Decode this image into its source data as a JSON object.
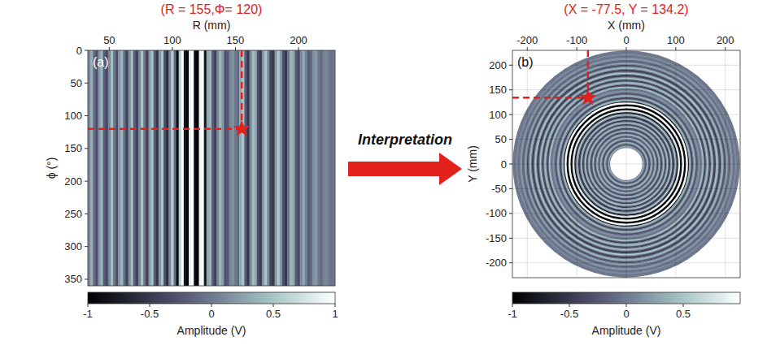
{
  "chart_data": [
    {
      "type": "heatmap",
      "title": "(R = 155,Φ= 120)",
      "panel": "(a)",
      "x_label": "R (mm)",
      "y_label": "ϕ (°)",
      "xlim": [
        33,
        229
      ],
      "xticks": [
        50,
        100,
        150,
        200
      ],
      "ylim": [
        0,
        360
      ],
      "yticks": [
        0,
        50,
        100,
        150,
        200,
        250,
        300,
        350
      ],
      "point": {
        "r": 155,
        "phi": 120
      },
      "profile": {
        "r": [
          34,
          36,
          38,
          40,
          42,
          44,
          46,
          48,
          50,
          52,
          54,
          56,
          58,
          60,
          62,
          64,
          66,
          68,
          70,
          72,
          74,
          76,
          78,
          80,
          82,
          84,
          86,
          88,
          90,
          92,
          94,
          96,
          98,
          100,
          102,
          104,
          106,
          108,
          110,
          112,
          114,
          116,
          118,
          120,
          122,
          124,
          126,
          128,
          130,
          132,
          134,
          136,
          138,
          140,
          142,
          144,
          146,
          148,
          150,
          152,
          154,
          156,
          158,
          160,
          162,
          164,
          166,
          168,
          170,
          172,
          174,
          176,
          178,
          180,
          182,
          184,
          186,
          188,
          190,
          192,
          194,
          196,
          198,
          200,
          202,
          204,
          206,
          208,
          210,
          212,
          214,
          216,
          218,
          220,
          222,
          224,
          226,
          228
        ],
        "amplitude": [
          0.1,
          0.35,
          -0.1,
          -0.3,
          0.2,
          0.4,
          -0.2,
          -0.35,
          0.1,
          0.45,
          0.0,
          -0.3,
          0.2,
          0.4,
          -0.1,
          -0.4,
          0.15,
          0.45,
          -0.2,
          -0.4,
          0.1,
          0.5,
          -0.05,
          -0.45,
          0.2,
          0.5,
          -0.2,
          -0.5,
          0.2,
          0.5,
          -0.3,
          -0.6,
          0.1,
          0.6,
          -0.1,
          -0.9,
          0.6,
          1.0,
          -0.8,
          -1.0,
          0.9,
          1.0,
          -0.9,
          -1.0,
          0.9,
          1.0,
          -0.8,
          0.3,
          0.4,
          -0.2,
          -0.45,
          0.1,
          0.4,
          0.2,
          -0.3,
          -0.2,
          0.1,
          0.15,
          0.0,
          -0.1,
          0.3,
          0.5,
          -0.2,
          -0.5,
          0.1,
          0.45,
          0.3,
          -0.3,
          -0.45,
          0.2,
          0.5,
          0.1,
          -0.4,
          -0.5,
          0.2,
          0.55,
          0.2,
          -0.3,
          -0.5,
          0.0,
          0.4,
          0.3,
          -0.2,
          -0.35,
          0.1,
          0.3,
          0.05,
          -0.2,
          -0.1,
          0.15,
          0.2,
          0.0,
          -0.1,
          0.05,
          0.1,
          0.0,
          -0.05,
          0.0
        ]
      },
      "colorbar": {
        "label": "Amplitude (V)",
        "lim": [
          -1,
          1
        ],
        "ticks": [
          -1,
          -0.5,
          0,
          0.5,
          1
        ]
      }
    },
    {
      "type": "ring_map",
      "title": "(X = -77.5, Y = 134.2)",
      "panel": "(b)",
      "x_label": "X (mm)",
      "y_label": "Y (mm)",
      "xlim": [
        -230,
        230
      ],
      "xticks": [
        -200,
        -100,
        0,
        100,
        200
      ],
      "ylim": [
        -230,
        230
      ],
      "yticks": [
        -200,
        -150,
        -100,
        -50,
        0,
        50,
        100,
        150,
        200
      ],
      "grid": true,
      "point": {
        "x": -77.5,
        "y": 134.2
      },
      "colorbar": {
        "label": "Amplitude (V)",
        "lim": [
          -1,
          1
        ],
        "ticks": [
          -1,
          -0.5,
          0,
          0.5
        ]
      }
    }
  ],
  "arrow_label": "Interpretation"
}
